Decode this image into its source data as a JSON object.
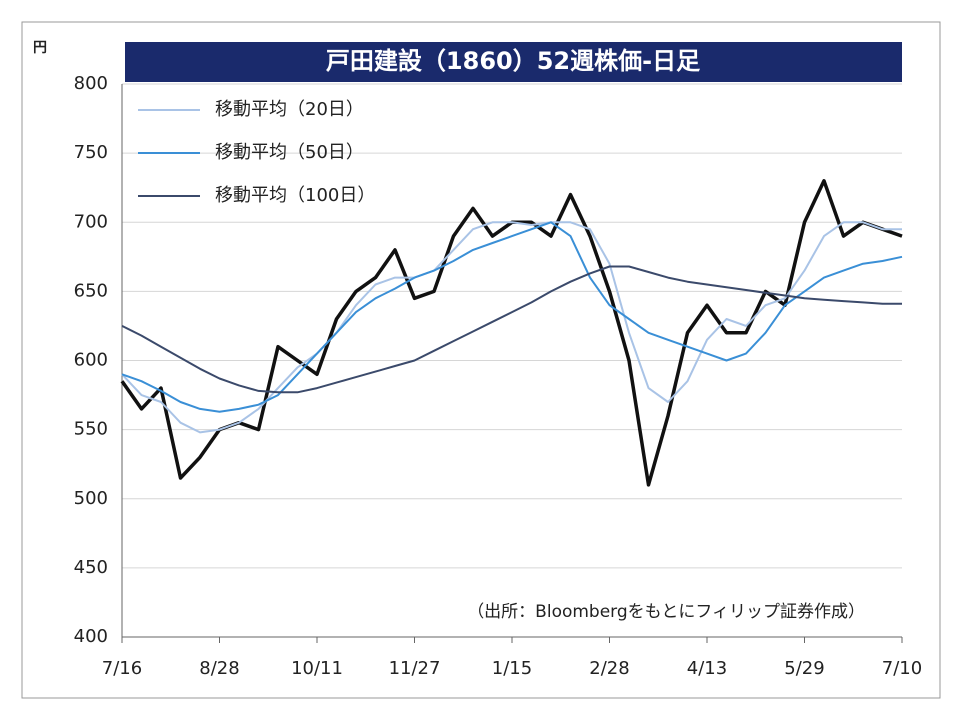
{
  "chart_data": {
    "type": "line",
    "title": "戸田建設（1860）52週株価-日足",
    "y_label": "円",
    "annotation": "（出所：Bloombergをもとにフィリップ証券作成）",
    "x": [
      0,
      0.2,
      0.4,
      0.6,
      0.8,
      1,
      1.2,
      1.4,
      1.6,
      1.8,
      2,
      2.2,
      2.4,
      2.6,
      2.8,
      3,
      3.2,
      3.4,
      3.6,
      3.8,
      4,
      4.2,
      4.4,
      4.6,
      4.8,
      5,
      5.2,
      5.4,
      5.6,
      5.8,
      6,
      6.2,
      6.4,
      6.6,
      6.8,
      7,
      7.2,
      7.4,
      7.6,
      7.8,
      8
    ],
    "xlim": [
      0,
      8
    ],
    "xticks": [
      {
        "value": 0,
        "label": "7/16"
      },
      {
        "value": 1,
        "label": "8/28"
      },
      {
        "value": 2,
        "label": "10/11"
      },
      {
        "value": 3,
        "label": "11/27"
      },
      {
        "value": 4,
        "label": "1/15"
      },
      {
        "value": 5,
        "label": "2/28"
      },
      {
        "value": 6,
        "label": "4/13"
      },
      {
        "value": 7,
        "label": "5/29"
      },
      {
        "value": 8,
        "label": "7/10"
      }
    ],
    "ylim": [
      400,
      800
    ],
    "yticks": [
      400,
      450,
      500,
      550,
      600,
      650,
      700,
      750,
      800
    ],
    "grid": true,
    "legend": "top-left",
    "series": [
      {
        "color": "#111111",
        "values": [
          585,
          565,
          580,
          515,
          530,
          550,
          555,
          550,
          610,
          600,
          590,
          630,
          650,
          660,
          680,
          645,
          650,
          690,
          710,
          690,
          700,
          700,
          690,
          720,
          690,
          650,
          600,
          510,
          560,
          620,
          640,
          620,
          620,
          650,
          640,
          700,
          730,
          690,
          700,
          695,
          690
        ]
      },
      {
        "name": "移動平均（20日）",
        "color": "#a9c3e6",
        "values": [
          590,
          575,
          570,
          555,
          548,
          550,
          555,
          565,
          580,
          595,
          605,
          620,
          640,
          655,
          660,
          660,
          665,
          680,
          695,
          700,
          700,
          698,
          700,
          700,
          695,
          670,
          620,
          580,
          570,
          585,
          615,
          630,
          625,
          640,
          645,
          665,
          690,
          700,
          700,
          695,
          695
        ]
      },
      {
        "name": "移動平均（50日）",
        "color": "#3a8fd6",
        "values": [
          590,
          585,
          578,
          570,
          565,
          563,
          565,
          568,
          575,
          590,
          605,
          620,
          635,
          645,
          652,
          660,
          665,
          672,
          680,
          685,
          690,
          695,
          700,
          690,
          660,
          640,
          630,
          620,
          615,
          610,
          605,
          600,
          605,
          620,
          640,
          650,
          660,
          665,
          670,
          672,
          675
        ]
      },
      {
        "name": "移動平均（100日）",
        "color": "#3b4a6b",
        "values": [
          625,
          618,
          610,
          602,
          594,
          587,
          582,
          578,
          577,
          577,
          580,
          584,
          588,
          592,
          596,
          600,
          607,
          614,
          621,
          628,
          635,
          642,
          650,
          657,
          663,
          668,
          668,
          664,
          660,
          657,
          655,
          653,
          651,
          649,
          647,
          645,
          644,
          643,
          642,
          641,
          641
        ]
      }
    ]
  }
}
